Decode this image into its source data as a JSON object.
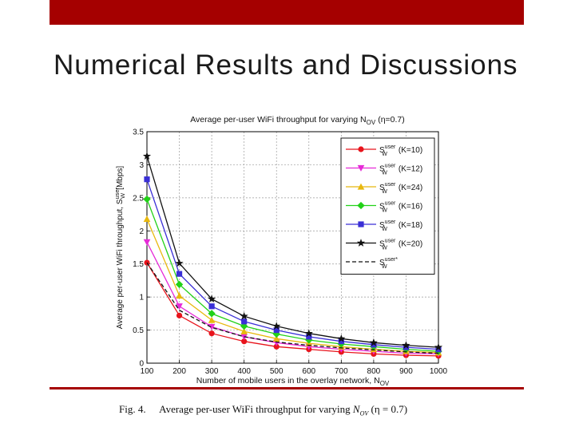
{
  "slide": {
    "title": "Numerical Results and Discussions",
    "accent_color": "#a50000"
  },
  "figure": {
    "caption_label": "Fig. 4.",
    "caption_text": "Average per-user WiFi throughput for varying",
    "caption_symbol": "N",
    "caption_subscript": "OV",
    "caption_param": "(η = 0.7)"
  },
  "chart_data": {
    "type": "line",
    "title": "Average per-user WiFi throughput for varying N",
    "title_subscript": "OV",
    "title_param": "(η=0.7)",
    "xlabel": "Number of mobile users in the overlay network, N",
    "xlabel_subscript": "OV",
    "ylabel": "Average per-user WiFi throughput, S",
    "ylabel_superscript": "user",
    "ylabel_subscript": "W",
    "ylabel_unit": "[Mbps]",
    "xlim": [
      100,
      1000
    ],
    "ylim": [
      0,
      3.5
    ],
    "xticks": [
      100,
      200,
      300,
      400,
      500,
      600,
      700,
      800,
      900,
      1000
    ],
    "xtick_labels": [
      "100",
      "200",
      "300",
      "400",
      "500",
      "600",
      "700",
      "800",
      "900",
      "1000"
    ],
    "yticks": [
      0,
      0.5,
      1,
      1.5,
      2,
      2.5,
      3,
      3.5
    ],
    "ytick_labels": [
      "0",
      "0.5",
      "1",
      "1.5",
      "2",
      "2.5",
      "3",
      "3.5"
    ],
    "grid": true,
    "legend_position": "top-right",
    "x": [
      100,
      200,
      300,
      400,
      500,
      600,
      700,
      800,
      900,
      1000
    ],
    "series": [
      {
        "name": "(K=10)",
        "color": "#e8141c",
        "marker": "circle",
        "dashed": false,
        "values": [
          1.52,
          0.72,
          0.45,
          0.33,
          0.25,
          0.21,
          0.17,
          0.14,
          0.12,
          0.11
        ]
      },
      {
        "name": "(K=12)",
        "color": "#e62ad7",
        "marker": "triangle-down",
        "dashed": false,
        "values": [
          1.83,
          0.86,
          0.55,
          0.4,
          0.31,
          0.25,
          0.21,
          0.18,
          0.15,
          0.14
        ]
      },
      {
        "name": "(K=24)",
        "color": "#e8b80e",
        "marker": "triangle-up",
        "dashed": false,
        "values": [
          2.18,
          1.02,
          0.65,
          0.48,
          0.37,
          0.3,
          0.25,
          0.21,
          0.18,
          0.16
        ]
      },
      {
        "name": "(K=16)",
        "color": "#22d118",
        "marker": "diamond",
        "dashed": false,
        "values": [
          2.48,
          1.19,
          0.75,
          0.56,
          0.44,
          0.35,
          0.29,
          0.25,
          0.21,
          0.18
        ]
      },
      {
        "name": "(K=18)",
        "color": "#3a2fd6",
        "marker": "square",
        "dashed": false,
        "values": [
          2.78,
          1.35,
          0.86,
          0.63,
          0.5,
          0.4,
          0.33,
          0.28,
          0.24,
          0.21
        ]
      },
      {
        "name": "(K=20)",
        "color": "#111111",
        "marker": "star",
        "dashed": false,
        "values": [
          3.13,
          1.51,
          0.97,
          0.71,
          0.56,
          0.45,
          0.37,
          0.31,
          0.27,
          0.24
        ]
      },
      {
        "name": "",
        "color": "#111111",
        "marker": "none",
        "dashed": true,
        "values": [
          1.52,
          0.8,
          0.54,
          0.4,
          0.32,
          0.27,
          0.23,
          0.2,
          0.17,
          0.15
        ]
      }
    ],
    "legend_symbol": "S",
    "legend_superscript": "user",
    "legend_subscript": "W",
    "legend_last_superscript": "user*"
  }
}
